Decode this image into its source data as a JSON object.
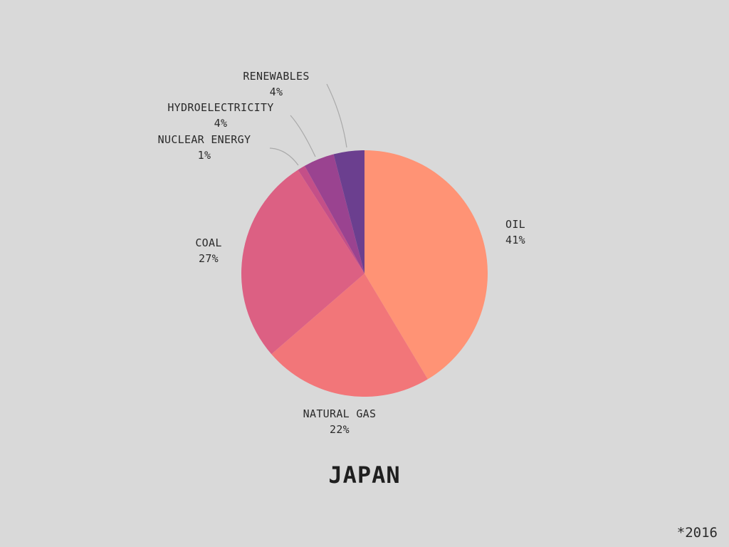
{
  "chart_data": {
    "type": "pie",
    "title": "JAPAN",
    "footnote": "*2016",
    "slices": [
      {
        "name": "OIL",
        "label": "41%",
        "value": 41,
        "color": "#ff9375"
      },
      {
        "name": "NATURAL GAS",
        "label": "22%",
        "value": 22,
        "color": "#f27679"
      },
      {
        "name": "COAL",
        "label": "27%",
        "value": 27,
        "color": "#dc6083"
      },
      {
        "name": "NUCLEAR ENERGY",
        "label": "1%",
        "value": 1,
        "color": "#c44f88"
      },
      {
        "name": "HYDROELECTRICITY",
        "label": "4%",
        "value": 4,
        "color": "#9a4390"
      },
      {
        "name": "RENEWABLES",
        "label": "4%",
        "value": 4,
        "color": "#6b3f8f"
      }
    ]
  }
}
